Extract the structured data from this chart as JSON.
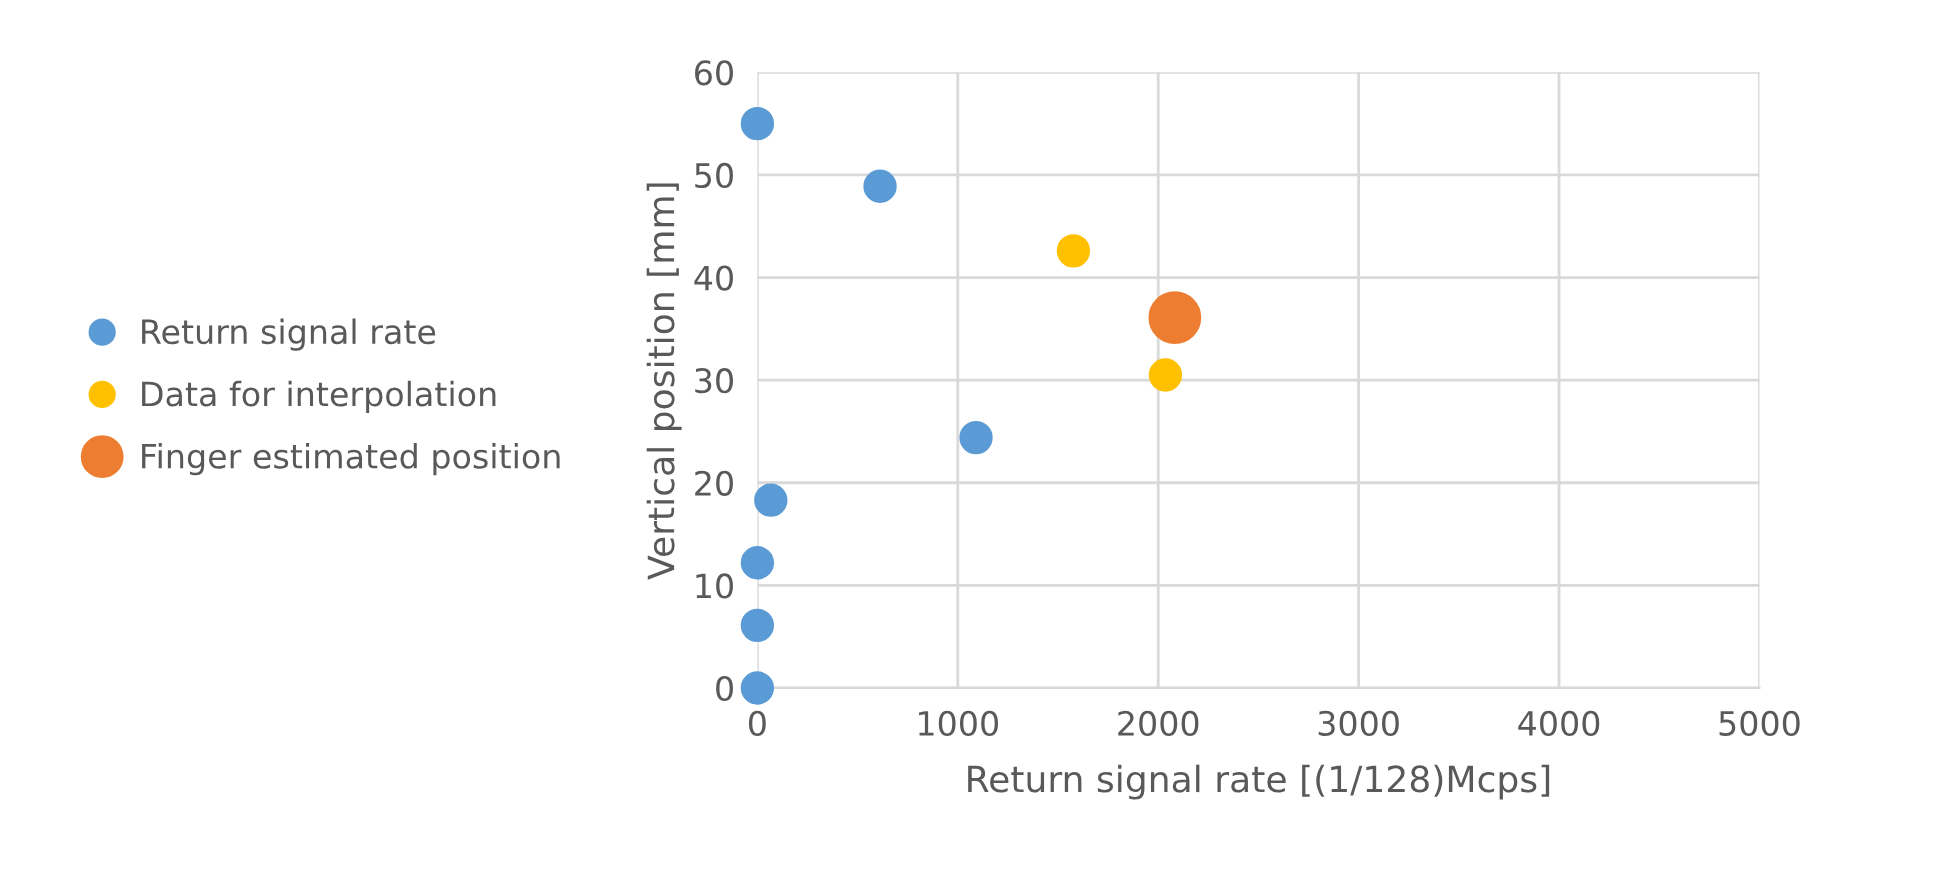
{
  "chart_data": {
    "type": "scatter",
    "xlabel": "Return signal rate [(1/128)Mcps]",
    "ylabel": "Vertical position [mm]",
    "xlim": [
      0,
      5000
    ],
    "xticks": [
      0,
      1000,
      2000,
      3000,
      4000,
      5000
    ],
    "ylim": [
      0,
      60
    ],
    "yticks": [
      0,
      10,
      20,
      30,
      40,
      50,
      60
    ],
    "grid": true,
    "legend": "left",
    "marker": "circle",
    "series": [
      {
        "name": "Return signal rate",
        "color": "#5b9bd5",
        "x": [
          0,
          612,
          1091,
          67,
          0,
          0,
          0
        ],
        "values": [
          55.0,
          48.9,
          24.4,
          18.3,
          12.2,
          6.1,
          0
        ]
      },
      {
        "name": "Data for interpolation",
        "color": "#ffc000",
        "x": [
          1577,
          2036
        ],
        "values": [
          42.6,
          30.5
        ]
      },
      {
        "name": "Finger estimated position",
        "color": "#ed7d31",
        "x": [
          2083
        ],
        "values": [
          36.1
        ]
      }
    ]
  }
}
